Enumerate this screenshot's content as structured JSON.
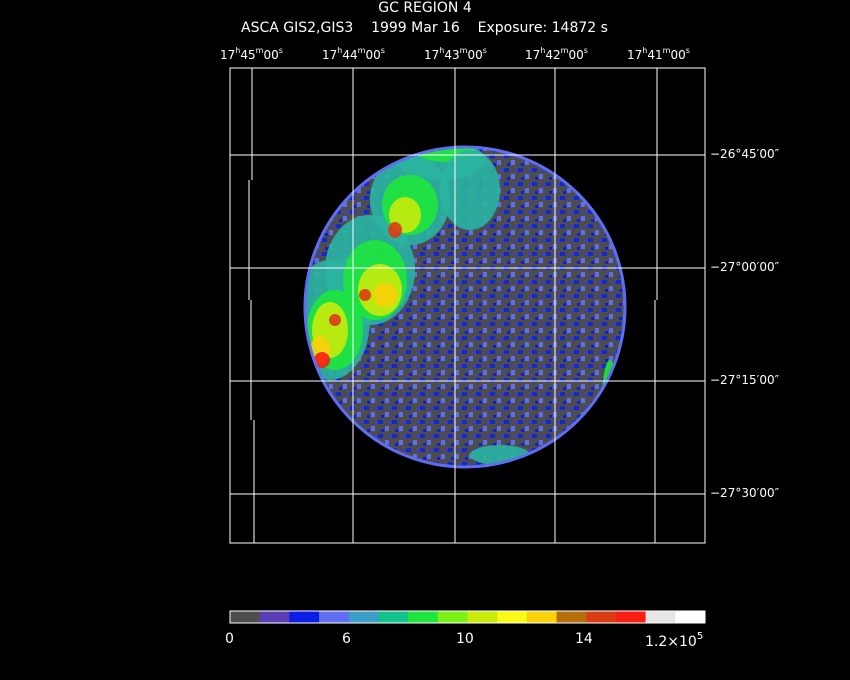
{
  "header": {
    "title": "GC REGION 4",
    "instrument": "ASCA GIS2,GIS3",
    "date": "1999 Mar 16",
    "exposure": "Exposure: 14872 s"
  },
  "ra_labels": [
    {
      "h": "17",
      "m": "45",
      "s": "00"
    },
    {
      "h": "17",
      "m": "44",
      "s": "00"
    },
    {
      "h": "17",
      "m": "43",
      "s": "00"
    },
    {
      "h": "17",
      "m": "42",
      "s": "00"
    },
    {
      "h": "17",
      "m": "41",
      "s": "00"
    }
  ],
  "dec_labels": [
    "−26°45′00″",
    "−27°00′00″",
    "−27°15′00″",
    "−27°30′00″"
  ],
  "colorbar": {
    "colors": [
      "#4d4d4d",
      "#5a3cb4",
      "#0a1ee6",
      "#5f6ef0",
      "#3c9ec8",
      "#14c38c",
      "#1ee63c",
      "#7af014",
      "#c8eb0a",
      "#fafa14",
      "#fad20a",
      "#b46e0a",
      "#dc3c14",
      "#fa1e14",
      "#e6e6e6",
      "#ffffff"
    ],
    "labels": [
      "0",
      "6",
      "10",
      "14"
    ],
    "max_label": "1.2×10",
    "max_exp": "5"
  }
}
